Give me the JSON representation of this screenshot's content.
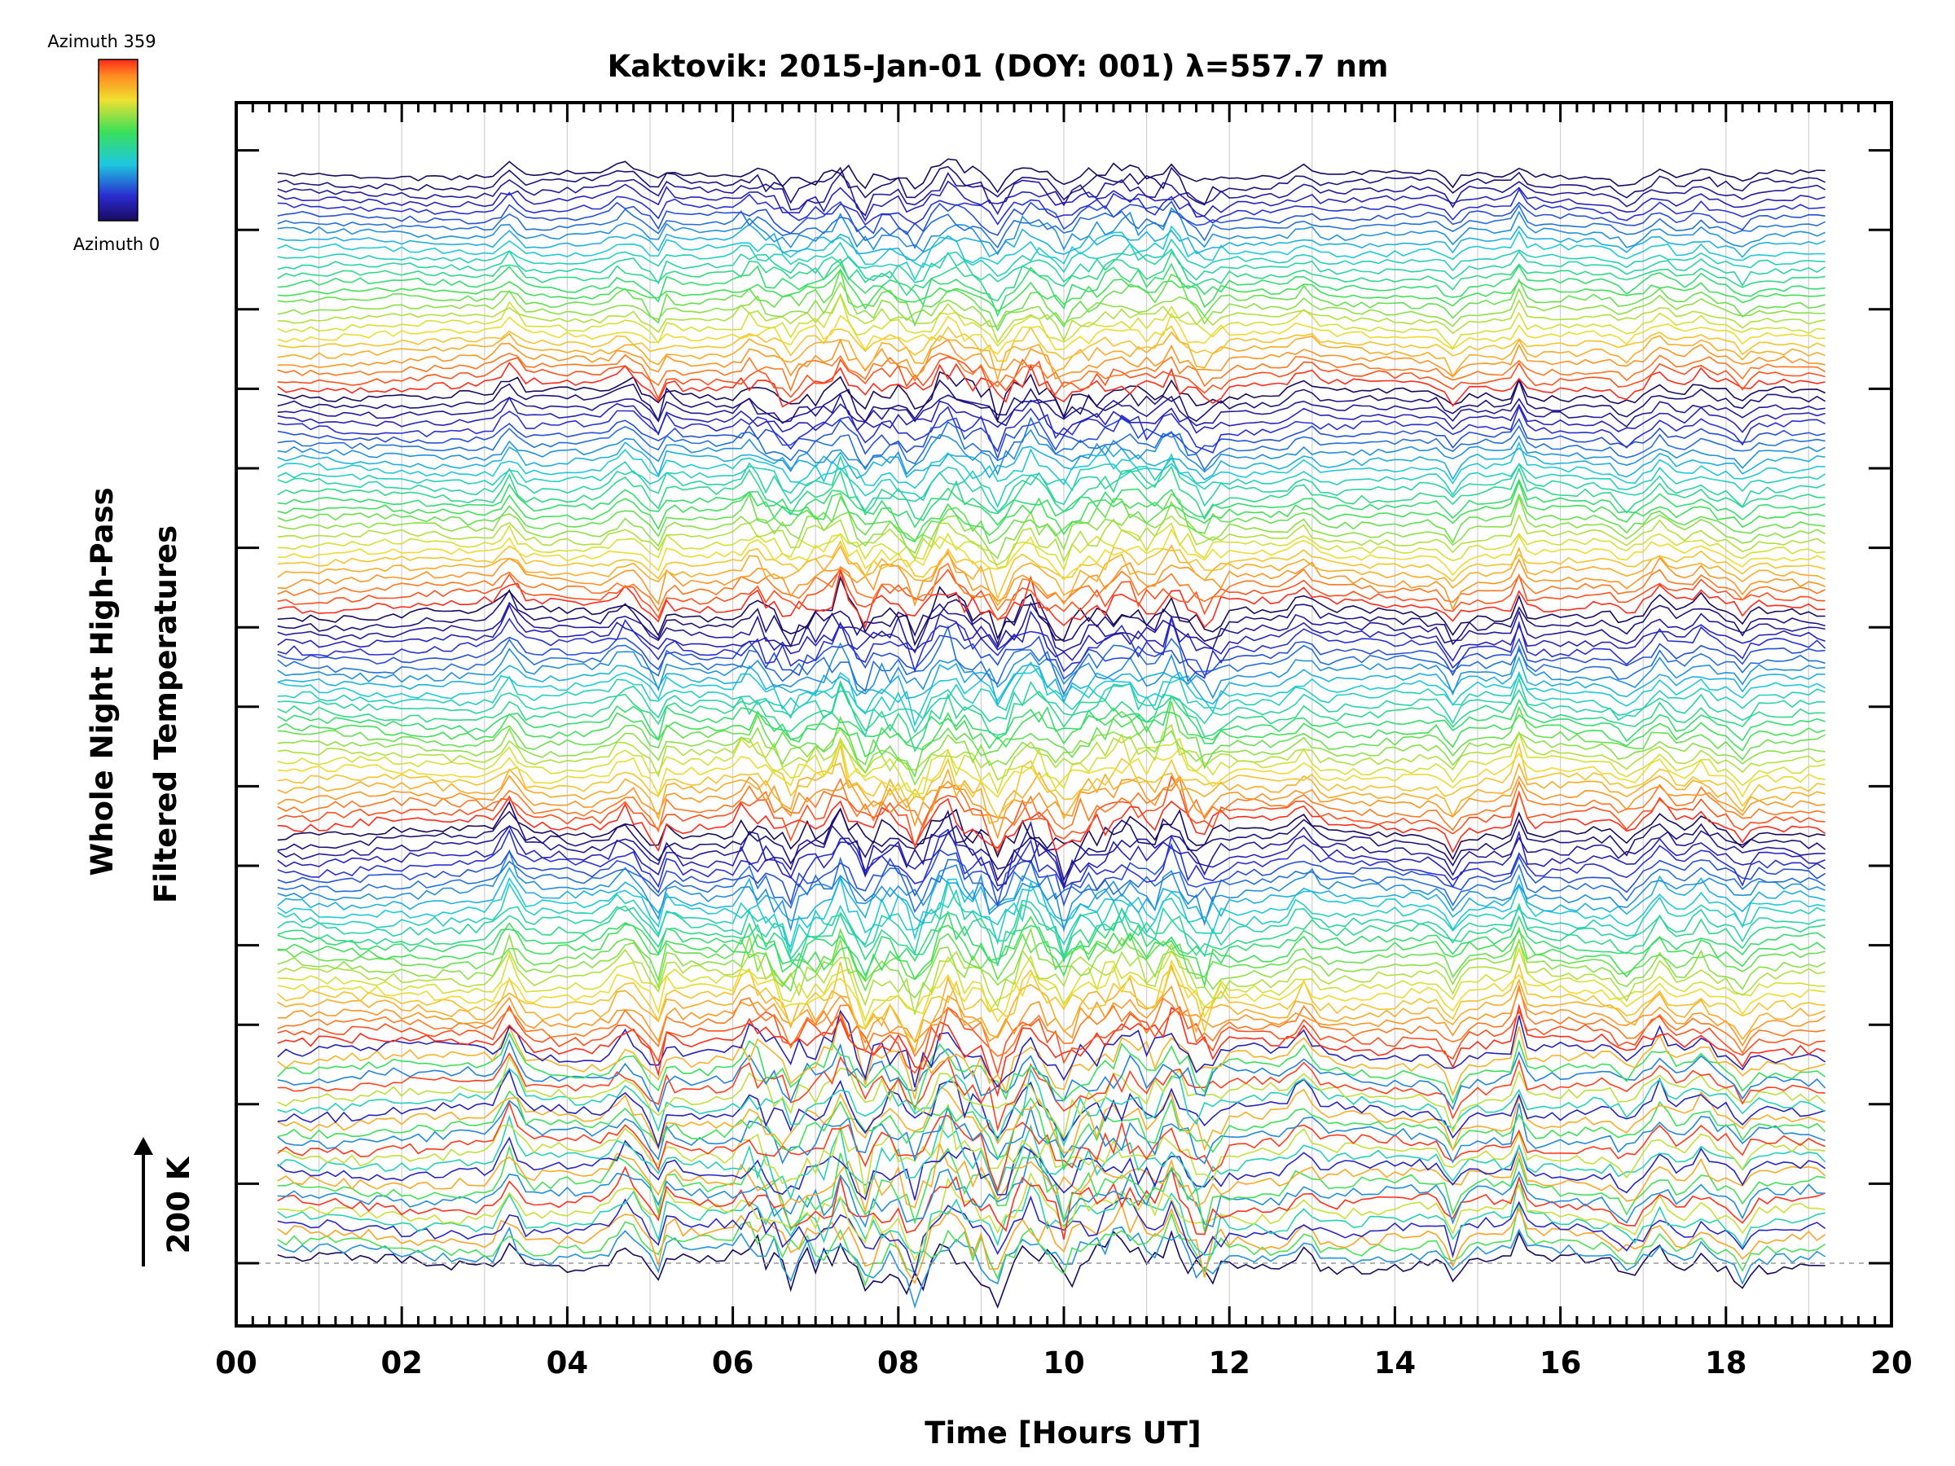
{
  "chart_data": {
    "type": "line",
    "title": "Kaktovik: 2015-Jan-01 (DOY: 001) λ=557.7 nm",
    "xlabel": "Time [Hours UT]",
    "ylabel_line1": "Whole Night High-Pass",
    "ylabel_line2": "Filtered Temperatures",
    "scale_label": "200 K",
    "xlim": [
      0,
      20
    ],
    "x_ticks": [
      "00",
      "02",
      "04",
      "06",
      "08",
      "10",
      "12",
      "14",
      "16",
      "18",
      "20"
    ],
    "time_range": [
      0.5,
      19.2
    ],
    "grid": true,
    "baseline": "dashed at lowest series",
    "colorbar": {
      "colormap": "rainbow (dark blue → red)",
      "top_label": "Azimuth  359",
      "bottom_label": "Azimuth  0",
      "position": "top-left"
    },
    "series_count": 130,
    "notes": "Stacked high-pass filtered temperature traces, one per azimuth; colour encodes azimuth."
  }
}
